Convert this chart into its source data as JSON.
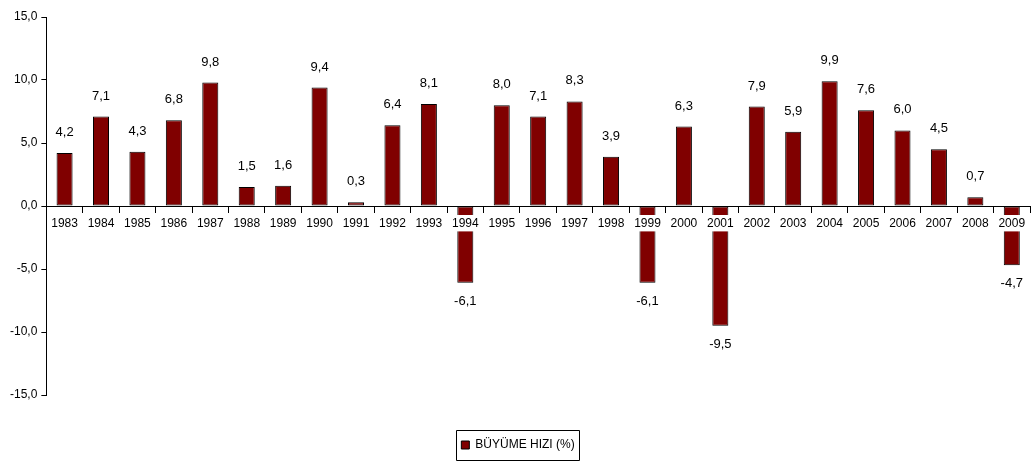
{
  "chart_data": {
    "type": "bar",
    "categories": [
      "1983",
      "1984",
      "1985",
      "1986",
      "1987",
      "1988",
      "1989",
      "1990",
      "1991",
      "1992",
      "1993",
      "1994",
      "1995",
      "1996",
      "1997",
      "1998",
      "1999",
      "2000",
      "2001",
      "2002",
      "2003",
      "2004",
      "2005",
      "2006",
      "2007",
      "2008",
      "2009"
    ],
    "series": [
      {
        "name": "BÜYÜME HIZI (%)",
        "color": "#800000",
        "values": [
          4.2,
          7.1,
          4.3,
          6.8,
          9.8,
          1.5,
          1.6,
          9.4,
          0.3,
          6.4,
          8.1,
          -6.1,
          8.0,
          7.1,
          8.3,
          3.9,
          -6.1,
          6.3,
          -9.5,
          7.9,
          5.9,
          9.9,
          7.6,
          6.0,
          4.5,
          0.7,
          -4.7
        ],
        "value_labels": [
          "4,2",
          "7,1",
          "4,3",
          "6,8",
          "9,8",
          "1,5",
          "1,6",
          "9,4",
          "0,3",
          "6,4",
          "8,1",
          "-6,1",
          "8,0",
          "7,1",
          "8,3",
          "3,9",
          "-6,1",
          "6,3",
          "-9,5",
          "7,9",
          "5,9",
          "9,9",
          "7,6",
          "6,0",
          "4,5",
          "0,7",
          "-4,7"
        ]
      }
    ],
    "ylim": [
      -15,
      15
    ],
    "yticks": [
      {
        "value": -15,
        "label": "-15,0"
      },
      {
        "value": -10,
        "label": "-10,0"
      },
      {
        "value": -5,
        "label": "-5,0"
      },
      {
        "value": 0,
        "label": "0,0"
      },
      {
        "value": 5,
        "label": "5,0"
      },
      {
        "value": 10,
        "label": "10,0"
      },
      {
        "value": 15,
        "label": "15,0"
      }
    ],
    "grid": false,
    "legend": "bottom"
  }
}
